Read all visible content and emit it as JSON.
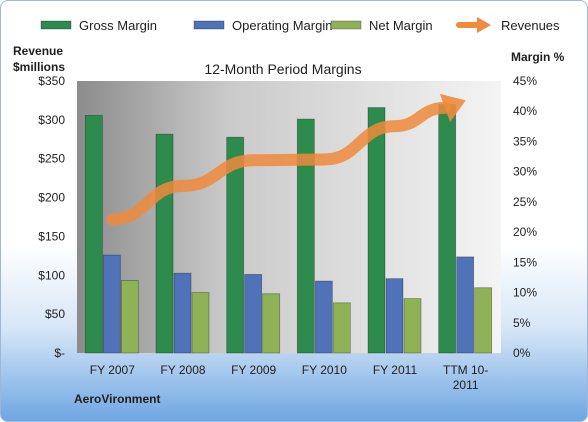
{
  "chart_data": {
    "type": "bar",
    "title": "12-Month Period Margins",
    "company": "AeroVironment",
    "categories": [
      "FY 2007",
      "FY 2008",
      "FY 2009",
      "FY 2010",
      "FY 2011",
      "TTM 10-2011"
    ],
    "category_lines": [
      [
        "FY 2007"
      ],
      [
        "FY 2008"
      ],
      [
        "FY 2009"
      ],
      [
        "FY 2010"
      ],
      [
        "FY 2011"
      ],
      [
        "TTM 10-",
        "2011"
      ]
    ],
    "series": [
      {
        "name": "Gross Margin",
        "kind": "bar",
        "axis": "right",
        "unit": "%",
        "values": [
          39.3,
          36.2,
          35.7,
          38.7,
          40.6,
          41.1
        ],
        "color": "#2e8b4e"
      },
      {
        "name": "Operating Margin",
        "kind": "bar",
        "axis": "right",
        "unit": "%",
        "values": [
          16.2,
          13.2,
          13.0,
          11.9,
          12.3,
          15.9
        ],
        "color": "#4f72b8"
      },
      {
        "name": "Net Margin",
        "kind": "bar",
        "axis": "right",
        "unit": "%",
        "values": [
          12.0,
          10.0,
          9.8,
          8.3,
          9.0,
          10.8
        ],
        "color": "#8fb257"
      },
      {
        "name": "Revenues",
        "kind": "line",
        "axis": "left",
        "unit": "$millions",
        "values": [
          172,
          215,
          248,
          249,
          292,
          325
        ],
        "color": "#f08a3c"
      }
    ],
    "ylabel_left": [
      "Revenue",
      "$millions"
    ],
    "ylabel_right": "Margin %",
    "ylim_left": [
      0,
      350
    ],
    "ylim_right": [
      0,
      45
    ],
    "yticks_left": [
      "$350",
      "$300",
      "$250",
      "$200",
      "$150",
      "$100",
      "$50",
      "$-"
    ],
    "yticks_right": [
      "45%",
      "40%",
      "35%",
      "30%",
      "25%",
      "20%",
      "15%",
      "10%",
      "5%",
      "0%"
    ],
    "legend_position": "top",
    "grid": false
  }
}
